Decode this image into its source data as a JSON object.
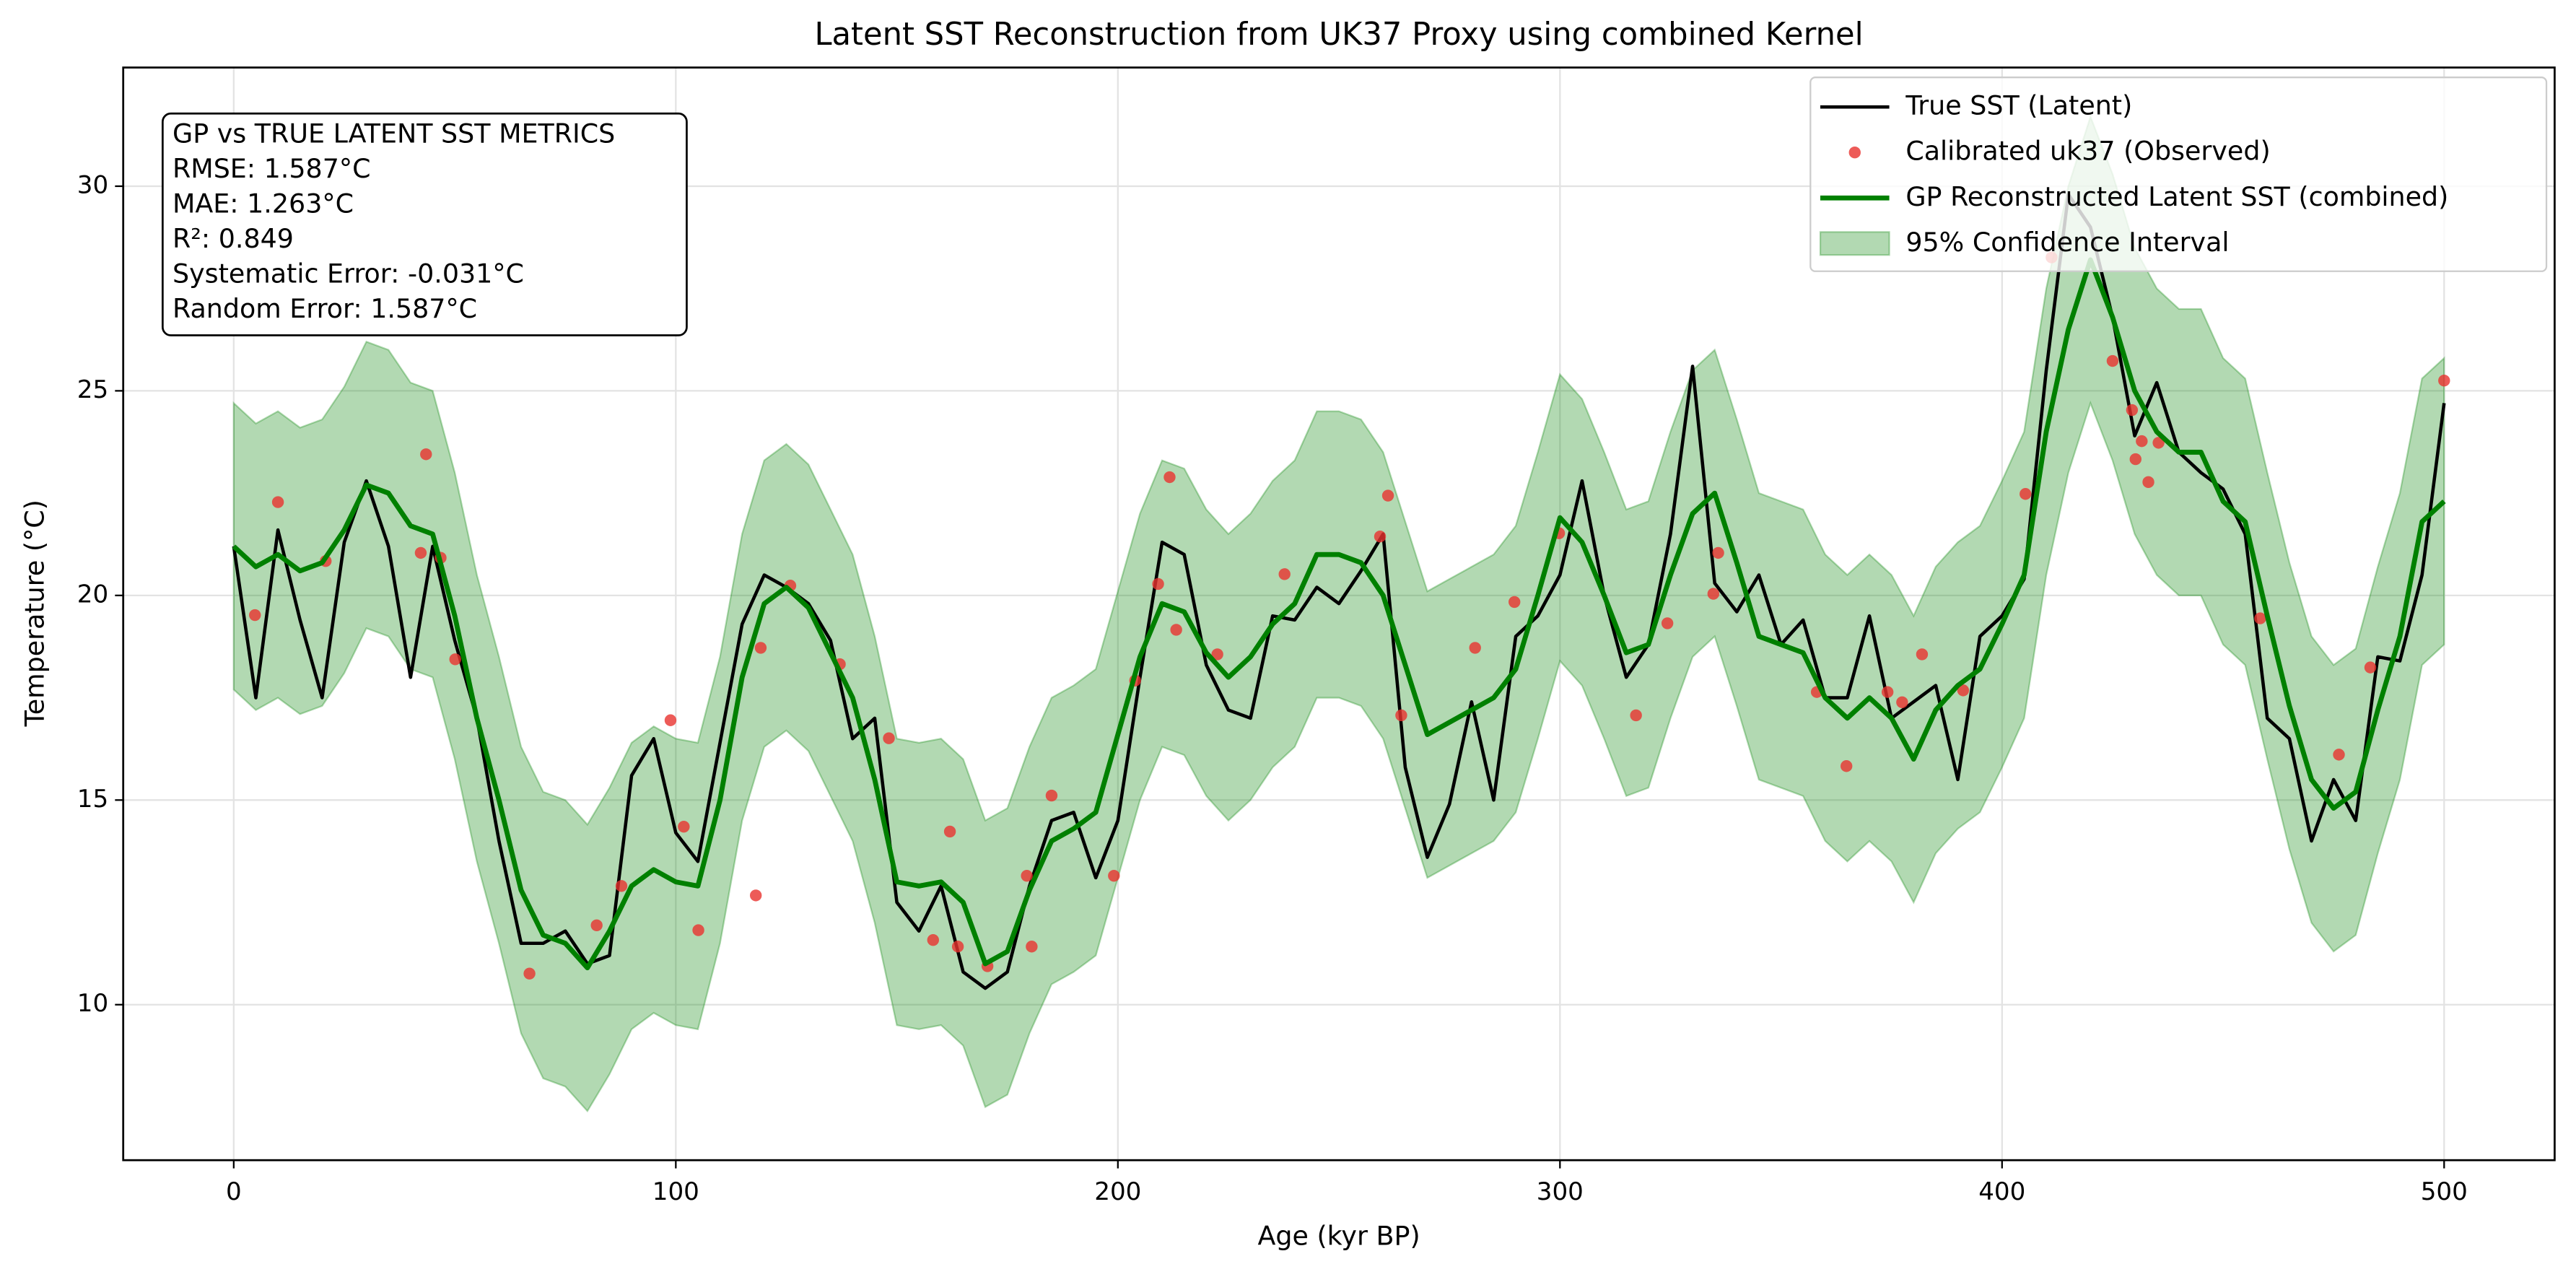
{
  "chart_data": {
    "type": "line",
    "title": "Latent SST Reconstruction from UK37 Proxy using combined Kernel",
    "xlabel": "Age (kyr BP)",
    "ylabel": "Temperature (°C)",
    "xlim": [
      -25,
      525
    ],
    "ylim": [
      6.2,
      32.9
    ],
    "xticks": [
      0,
      100,
      200,
      300,
      400,
      500
    ],
    "yticks": [
      10,
      15,
      20,
      25,
      30
    ],
    "grid": true,
    "legend": "upper right",
    "x": [
      0,
      5,
      10,
      15,
      20,
      25,
      30,
      35,
      40,
      45,
      50,
      55,
      60,
      65,
      70,
      75,
      80,
      85,
      90,
      95,
      100,
      105,
      110,
      115,
      120,
      125,
      130,
      135,
      140,
      145,
      150,
      155,
      160,
      165,
      170,
      175,
      180,
      185,
      190,
      195,
      200,
      205,
      210,
      215,
      220,
      225,
      230,
      235,
      240,
      245,
      250,
      255,
      260,
      265,
      270,
      275,
      280,
      285,
      290,
      295,
      300,
      305,
      310,
      315,
      320,
      325,
      330,
      335,
      340,
      345,
      350,
      355,
      360,
      365,
      370,
      375,
      380,
      385,
      390,
      395,
      400,
      405,
      410,
      415,
      420,
      425,
      430,
      435,
      440,
      445,
      450,
      455,
      460,
      465,
      470,
      475,
      480,
      485,
      490,
      495,
      500
    ],
    "series": [
      {
        "name": "True SST (Latent)",
        "color": "#000000",
        "values": [
          21.2,
          17.5,
          21.6,
          19.4,
          17.5,
          21.3,
          22.8,
          21.2,
          18.0,
          21.2,
          18.9,
          17.0,
          14.0,
          11.5,
          11.5,
          11.8,
          11.0,
          11.2,
          15.6,
          16.5,
          14.2,
          13.5,
          16.4,
          19.3,
          20.5,
          20.2,
          19.8,
          18.9,
          16.5,
          17.0,
          12.5,
          11.8,
          12.9,
          10.8,
          10.4,
          10.8,
          12.9,
          14.5,
          14.7,
          13.1,
          14.5,
          18.0,
          21.3,
          21.0,
          18.3,
          17.2,
          17.0,
          19.5,
          19.4,
          20.2,
          19.8,
          20.6,
          21.5,
          15.8,
          13.6,
          14.9,
          17.4,
          15.0,
          19.0,
          19.5,
          20.5,
          22.8,
          20.0,
          18.0,
          18.8,
          21.5,
          25.6,
          20.3,
          19.6,
          20.5,
          18.8,
          19.4,
          17.5,
          17.5,
          19.5,
          17.0,
          17.4,
          17.8,
          15.5,
          19.0,
          19.5,
          20.4,
          25.5,
          29.8,
          29.0,
          26.8,
          23.9,
          25.2,
          23.5,
          23.0,
          22.6,
          21.5,
          17.0,
          16.5,
          14.0,
          15.5,
          14.5,
          18.5,
          18.4,
          20.5,
          24.7
        ]
      },
      {
        "name": "Calibrated uk37 (Observed)",
        "color": "#e8322e",
        "type": "scatter",
        "x": [
          4.8,
          10,
          20.8,
          42.3,
          43.5,
          46.8,
          50.1,
          66.9,
          82.1,
          87.7,
          98.8,
          101.8,
          105.1,
          118.1,
          119.2,
          125.9,
          137.1,
          148.2,
          158.2,
          162,
          163.8,
          170.5,
          179.4,
          180.5,
          185,
          199.1,
          203.9,
          209.1,
          211.7,
          213.2,
          222.5,
          237.7,
          259.3,
          261.1,
          264.1,
          280.8,
          289.7,
          299.8,
          317.2,
          324.3,
          334.7,
          335.8,
          358.1,
          364.8,
          374.1,
          377.4,
          381.9,
          391.2,
          405.3,
          411.2,
          425,
          429.4,
          430.2,
          431.6,
          433.1,
          435.4,
          458.4,
          476.2,
          483.3,
          500
        ],
        "values": [
          19.52,
          22.28,
          20.84,
          21.04,
          23.45,
          20.92,
          18.44,
          10.76,
          11.94,
          12.9,
          16.95,
          14.35,
          11.82,
          12.67,
          18.72,
          20.24,
          18.32,
          16.51,
          11.58,
          14.23,
          11.42,
          10.94,
          13.15,
          11.42,
          15.11,
          13.15,
          17.92,
          20.28,
          22.89,
          19.16,
          18.56,
          20.52,
          21.44,
          22.44,
          17.07,
          18.72,
          19.84,
          21.52,
          17.07,
          19.32,
          20.04,
          21.04,
          17.64,
          15.83,
          17.64,
          17.39,
          18.56,
          17.68,
          22.48,
          28.26,
          25.73,
          24.53,
          23.33,
          23.77,
          22.77,
          23.73,
          19.44,
          16.11,
          18.24,
          25.25
        ]
      },
      {
        "name": "GP Reconstructed Latent SST (combined)",
        "color": "#008000",
        "values": [
          21.2,
          20.7,
          21.0,
          20.6,
          20.8,
          21.6,
          22.7,
          22.5,
          21.7,
          21.5,
          19.5,
          17.0,
          15.0,
          12.8,
          11.7,
          11.5,
          10.9,
          11.8,
          12.9,
          13.3,
          13.0,
          12.9,
          15.0,
          18.0,
          19.8,
          20.2,
          19.7,
          18.6,
          17.5,
          15.5,
          13.0,
          12.9,
          13.0,
          12.5,
          11.0,
          11.3,
          12.8,
          14.0,
          14.3,
          14.7,
          16.6,
          18.5,
          19.8,
          19.6,
          18.6,
          18.0,
          18.5,
          19.3,
          19.8,
          21.0,
          21.0,
          20.8,
          20.0,
          18.3,
          16.6,
          16.9,
          17.2,
          17.5,
          18.2,
          20.0,
          21.9,
          21.3,
          20.0,
          18.6,
          18.8,
          20.5,
          22.0,
          22.5,
          20.8,
          19.0,
          18.8,
          18.6,
          17.5,
          17.0,
          17.5,
          17.0,
          16.0,
          17.2,
          17.8,
          18.2,
          19.3,
          20.5,
          24.0,
          26.5,
          28.2,
          26.8,
          25.0,
          24.0,
          23.5,
          23.5,
          22.3,
          21.8,
          19.5,
          17.3,
          15.5,
          14.8,
          15.2,
          17.2,
          19.0,
          21.8,
          22.3
        ]
      }
    ],
    "band": {
      "name": "95% Confidence Interval",
      "color": "#008000",
      "upper": [
        24.7,
        24.2,
        24.5,
        24.1,
        24.3,
        25.1,
        26.2,
        26.0,
        25.2,
        25.0,
        23.0,
        20.5,
        18.5,
        16.3,
        15.2,
        15.0,
        14.4,
        15.3,
        16.4,
        16.8,
        16.5,
        16.4,
        18.5,
        21.5,
        23.3,
        23.7,
        23.2,
        22.1,
        21.0,
        19.0,
        16.5,
        16.4,
        16.5,
        16.0,
        14.5,
        14.8,
        16.3,
        17.5,
        17.8,
        18.2,
        20.1,
        22.0,
        23.3,
        23.1,
        22.1,
        21.5,
        22.0,
        22.8,
        23.3,
        24.5,
        24.5,
        24.3,
        23.5,
        21.8,
        20.1,
        20.4,
        20.7,
        21.0,
        21.7,
        23.5,
        25.4,
        24.8,
        23.5,
        22.1,
        22.3,
        24.0,
        25.5,
        26.0,
        24.3,
        22.5,
        22.3,
        22.1,
        21.0,
        20.5,
        21.0,
        20.5,
        19.5,
        20.7,
        21.3,
        21.7,
        22.8,
        24.0,
        27.5,
        30.0,
        31.7,
        30.3,
        28.5,
        27.5,
        27.0,
        27.0,
        25.8,
        25.3,
        23.0,
        20.8,
        19.0,
        18.3,
        18.7,
        20.7,
        22.5,
        25.3,
        25.8
      ],
      "lower": [
        17.7,
        17.2,
        17.5,
        17.1,
        17.3,
        18.1,
        19.2,
        19.0,
        18.2,
        18.0,
        16.0,
        13.5,
        11.5,
        9.3,
        8.2,
        8.0,
        7.4,
        8.3,
        9.4,
        9.8,
        9.5,
        9.4,
        11.5,
        14.5,
        16.3,
        16.7,
        16.2,
        15.1,
        14.0,
        12.0,
        9.5,
        9.4,
        9.5,
        9.0,
        7.5,
        7.8,
        9.3,
        10.5,
        10.8,
        11.2,
        13.1,
        15.0,
        16.3,
        16.1,
        15.1,
        14.5,
        15.0,
        15.8,
        16.3,
        17.5,
        17.5,
        17.3,
        16.5,
        14.8,
        13.1,
        13.4,
        13.7,
        14.0,
        14.7,
        16.5,
        18.4,
        17.8,
        16.5,
        15.1,
        15.3,
        17.0,
        18.5,
        19.0,
        17.3,
        15.5,
        15.3,
        15.1,
        14.0,
        13.5,
        14.0,
        13.5,
        12.5,
        13.7,
        14.3,
        14.7,
        15.8,
        17.0,
        20.5,
        23.0,
        24.7,
        23.3,
        21.5,
        20.5,
        20.0,
        20.0,
        18.8,
        18.3,
        16.0,
        13.8,
        12.0,
        11.3,
        11.7,
        13.7,
        15.5,
        18.3,
        18.8
      ]
    },
    "annotation": {
      "lines": [
        "GP vs TRUE LATENT SST METRICS",
        "RMSE: 1.587°C",
        "MAE: 1.263°C",
        "R²: 0.849",
        "Systematic Error: -0.031°C",
        "Random Error: 1.587°C"
      ]
    }
  }
}
